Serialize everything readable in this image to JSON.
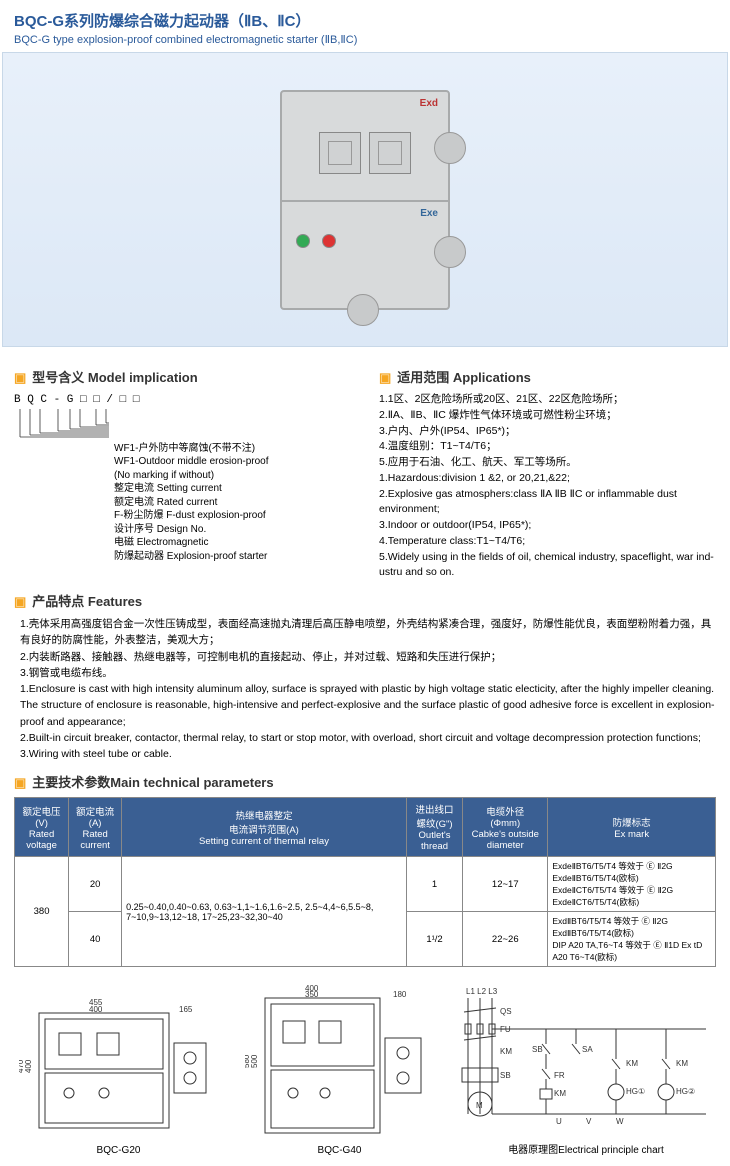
{
  "title_cn": "BQC-G系列防爆综合磁力起动器（ⅡB、ⅡC）",
  "title_en": "BQC-G type explosion-proof combined electromagnetic starter (ⅡB,ⅡC)",
  "model_heading": "型号含义  Model implication",
  "app_heading": "适用范围 Applications",
  "features_heading": "产品特点 Features",
  "params_heading": "主要技术参数Main technical parameters",
  "model_code": "B Q C - G □ □ / □ □",
  "model_lines": [
    "WF1-户外防中等腐蚀(不带不注)",
    "WF1-Outdoor middle erosion-proof",
    "(No marking if without)",
    "整定电流 Setting current",
    "额定电流 Rated current",
    "F-粉尘防爆 F-dust explosion-proof",
    "设计序号 Design No.",
    "电磁 Electromagnetic",
    "防爆起动器 Explosion-proof starter"
  ],
  "applications": [
    "1.1区、2区危险场所或20区、21区、22区危险场所；",
    "2.ⅡA、ⅡB、ⅡC 爆炸性气体环境或可燃性粉尘环境；",
    "3.户内、户外(IP54、IP65*)；",
    "4.温度组别：T1~T4/T6；",
    "5.应用于石油、化工、航天、军工等场所。",
    "1.Hazardous:division 1 &2, or 20,21,&22;",
    "2.Explosive gas atmosphers:class ⅡA ⅡB ⅡC or inflammable dust environment;",
    "3.Indoor or outdoor(IP54, IP65*);",
    "4.Temperature class:T1~T4/T6;",
    "5.Widely using in the fields of oil, chemical industry, spaceflight, war ind-ustru and so on."
  ],
  "features": [
    "1.壳体采用高强度铝合金一次性压铸成型，表面经高速抛丸清理后高压静电喷塑，外壳结构紧凑合理，强度好，防爆性能优良，表面塑粉附着力强，具有良好的防腐性能，外表整洁，美观大方；",
    "2.内装断路器、接触器、热继电器等，可控制电机的直接起动、停止，并对过载、短路和失压进行保护；",
    "3.钢管或电缆布线。",
    "1.Enclosure is cast with high intensity aluminum alloy, surface is sprayed with plastic by high voltage static electicity, after the highly impeller cleaning. The structure of enclosure is reasonable,  high-intensive and perfect-explosive and the surface plastic of good adhesive force is excellent  in explosion-proof and appearance;",
    "2.Built-in circuit breaker, contactor, thermal relay, to start or stop motor, with overload, short circuit and voltage decompression protection functions;",
    "3.Wiring with steel tube or cable."
  ],
  "table": {
    "headers": {
      "voltage": "额定电压\n(V)\nRated voltage",
      "current": "额定电流\n(A)\nRated current",
      "relay": "热继电器整定\n电流调节范围(A)\nSetting current of thermal relay",
      "thread": "进出线口\n螺纹(G\")\nOutlet's thread",
      "cable": "电缆外径\n(Φmm)\nCabke's outside diameter",
      "exmark": "防爆标志\nEx mark"
    },
    "rows": [
      {
        "voltage": "380",
        "current": "20",
        "relay": "0.25~0.40,0.40~0.63, 0.63~1,1~1.6,1.6~2.5, 2.5~4,4~6,5.5~8, 7~10,9~13,12~18, 17~25,23~32,30~40",
        "thread": "1",
        "cable": "12~17",
        "exmark": "ExdeⅡBT6/T5/T4 等效于 Ⓔ Ⅱ2G ExdeⅡBT6/T5/T4(欧标)\nExdeⅡCT6/T5/T4 等效于 Ⓔ Ⅱ2G ExdeⅡCT6/T5/T4(欧标)"
      },
      {
        "voltage": "",
        "current": "40",
        "relay": "",
        "thread": "1¹/2",
        "cable": "22~26",
        "exmark": "ExdⅡBT6/T5/T4 等效于 Ⓔ Ⅱ2G ExdⅡBT6/T5/T4(欧标)\nDIP A20 TA,T6~T4 等效于 Ⓔ Ⅱ1D Ex tD A20 T6~T4(欧标)"
      }
    ]
  },
  "dwg_labels": {
    "d1": "BQC-G20",
    "d2": "BQC-G40",
    "d3": "电器原理图Electrical principle chart"
  },
  "dwg_dims": {
    "d1": {
      "w": "455",
      "wi": "400",
      "wi2": "165",
      "h": "470",
      "hi": "400"
    },
    "d2": {
      "w": "400",
      "wi": "350",
      "wi2": "180",
      "h": "580",
      "hi": "500"
    }
  },
  "circuit_labels": [
    "L1 L2 L3",
    "QS",
    "FU",
    "SB",
    "SA",
    "KM",
    "FR",
    "KM",
    "HG①",
    "KM",
    "HG②",
    "V",
    "M"
  ]
}
